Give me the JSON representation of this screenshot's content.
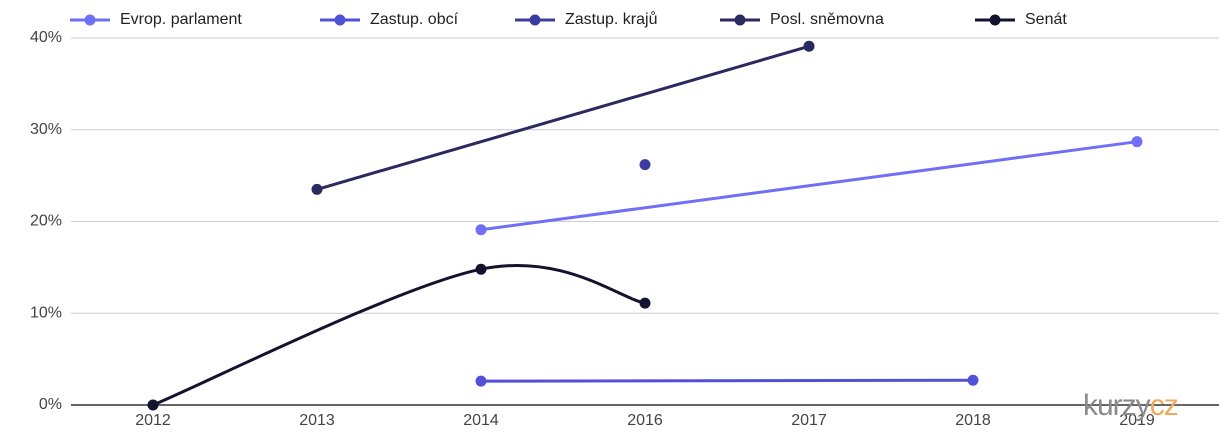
{
  "chart_data": {
    "type": "line",
    "categories": [
      "2012",
      "2013",
      "2014",
      "2016",
      "2017",
      "2018",
      "2019"
    ],
    "series": [
      {
        "name": "Evrop. parlament",
        "color": "#6f6ff7",
        "values": [
          null,
          null,
          19.1,
          null,
          null,
          null,
          28.7
        ]
      },
      {
        "name": "Zastup. obcí",
        "color": "#5151d8",
        "values": [
          null,
          null,
          2.6,
          null,
          null,
          2.7,
          null
        ]
      },
      {
        "name": "Zastup. krajů",
        "color": "#3c3ca0",
        "values": [
          null,
          null,
          null,
          26.2,
          null,
          null,
          null
        ]
      },
      {
        "name": "Posl. sněmovna",
        "color": "#2a2a60",
        "values": [
          null,
          23.5,
          null,
          null,
          39.1,
          null,
          null
        ]
      },
      {
        "name": "Senát",
        "color": "#13132e",
        "values": [
          0,
          null,
          14.8,
          11.1,
          null,
          null,
          null
        ]
      }
    ],
    "ylim": [
      0,
      40
    ],
    "yticks": [
      {
        "value": 0,
        "label": "0%"
      },
      {
        "value": 10,
        "label": "10%"
      },
      {
        "value": 20,
        "label": "20%"
      },
      {
        "value": 30,
        "label": "30%"
      },
      {
        "value": 40,
        "label": "40%"
      }
    ],
    "grid": true,
    "interpolate_nulls": true,
    "curve": "smooth",
    "legend": "top",
    "watermark": {
      "main": "kurzy",
      "accent": "cz"
    }
  }
}
